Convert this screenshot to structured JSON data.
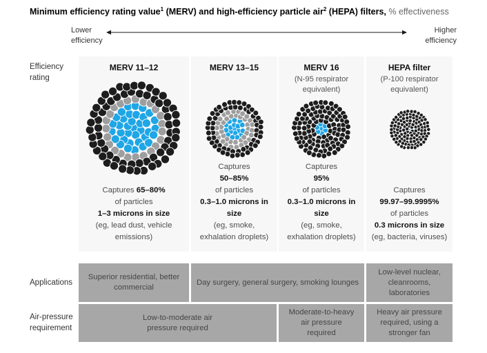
{
  "title": {
    "part1": "Minimum efficiency rating value",
    "sup1": "1",
    "part2": " (MERV) and high-efficiency particle air",
    "sup2": "2",
    "part3": " (HEPA) filters,",
    "suffix": " % effectiveness"
  },
  "axis": {
    "left_label": "Lower efficiency",
    "right_label": "Higher efficiency"
  },
  "row_labels": {
    "efficiency": "Efficiency rating",
    "applications": "Applications",
    "air_pressure": "Air-pressure requirement"
  },
  "colors": {
    "blue": "#1fa6e6",
    "gray": "#9e9e9e",
    "black": "#1d1d1d",
    "card_bg": "#f7f7f7",
    "box_bg": "#a7a7a7"
  },
  "filters": [
    {
      "name": "MERV 11–12",
      "subtitle": "",
      "captures_word": "Captures",
      "percent": "65–80%",
      "of_particles": "of particles",
      "particle_size": "1–3 microns in size",
      "examples": "(eg, lead dust, vehicle emissions)",
      "cluster": {
        "size": 140,
        "dot_d": 12.5,
        "spacing": 10.6,
        "ring_colors": [
          "blue",
          "blue",
          "blue",
          "blue",
          "gray",
          "black",
          "black"
        ]
      }
    },
    {
      "name": "MERV 13–15",
      "subtitle": "",
      "captures_word": "Captures",
      "percent": "50–85%",
      "of_particles": "of particles",
      "particle_size": "0.3–1.0 microns in size",
      "examples": "(eg, smoke, exhalation droplets)",
      "cluster": {
        "size": 88,
        "dot_d": 8.6,
        "spacing": 7.0,
        "ring_colors": [
          "blue",
          "blue",
          "blue",
          "gray",
          "gray",
          "black",
          "black"
        ]
      }
    },
    {
      "name": "MERV 16",
      "subtitle": "(N-95 respirator equivalent)",
      "captures_word": "Captures",
      "percent": "95%",
      "of_particles": "of particles",
      "particle_size": "0.3–1.0 microns in size",
      "examples": "(eg, smoke, exhalation droplets)",
      "cluster": {
        "size": 88,
        "dot_d": 8.6,
        "spacing": 7.0,
        "ring_colors": [
          "blue",
          "blue",
          "black",
          "black",
          "black",
          "black",
          "black"
        ]
      }
    },
    {
      "name": "HEPA filter",
      "subtitle": "(P-100 respirator equivalent)",
      "captures_word": "Captures",
      "percent": "99.97–99.9995%",
      "of_particles": "of particles",
      "particle_size": "0.3 microns in size",
      "examples": "(eg, bacteria, viruses)",
      "cluster": {
        "size": 62,
        "dot_d": 5.9,
        "spacing": 4.9,
        "center_scale": 0.55,
        "ring_colors": [
          "blue",
          "black",
          "black",
          "black",
          "black",
          "black",
          "black"
        ]
      }
    }
  ],
  "applications": [
    "Superior residential, better commercial",
    "Day surgery, general surgery, smoking lounges",
    "Low-level nuclear, cleanrooms, laboratories"
  ],
  "air_pressure": [
    "Low-to-moderate air pressure required",
    "Moderate-to-heavy air pressure required",
    "Heavy air pressure required, using a stronger fan"
  ]
}
